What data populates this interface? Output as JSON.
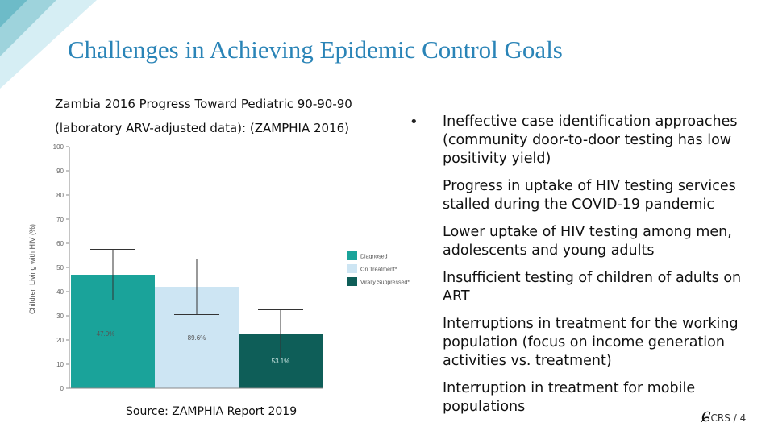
{
  "slide": {
    "title": "Challenges in Achieving Epidemic Control Goals",
    "chart_heading_line1": "Zambia 2016 Progress Toward Pediatric 90-90-90",
    "chart_heading_line2": "(laboratory ARV-adjusted data): (ZAMPHIA 2016)",
    "source": "Source: ZAMPHIA Report 2019",
    "bullet_symbol": "•",
    "bullets": [
      "Ineffective case identification approaches (community door-to-door testing has low positivity yield)",
      "Progress in uptake of HIV testing services stalled during the COVID-19 pandemic",
      "Lower uptake of HIV testing among men, adolescents and young adults",
      "Insufficient testing of children of adults on ART",
      "Interruptions in treatment for the working population (focus on income generation activities vs. treatment)",
      "Interruption in treatment for mobile populations"
    ],
    "logo_text": "CRS",
    "page_number": "/ 4"
  },
  "chart_data": {
    "type": "bar",
    "title": "",
    "xlabel": "",
    "ylabel": "Children Living with HIV (%)",
    "ylim": [
      0,
      100
    ],
    "yticks": [
      "0",
      "10",
      "20",
      "30",
      "40",
      "50",
      "60",
      "70",
      "80",
      "90",
      "100"
    ],
    "categories": [
      "Diagnosed",
      "On Treatment*",
      "Virally Suppressed*"
    ],
    "values": [
      47.0,
      42.0,
      22.5
    ],
    "data_labels": [
      "47.0%",
      "89.6%",
      "53.1%"
    ],
    "error_bars": [
      [
        36.5,
        57.5
      ],
      [
        30.5,
        53.5
      ],
      [
        12.5,
        32.5
      ]
    ],
    "colors": [
      "#1aa39a",
      "#cde5f3",
      "#0e5e58"
    ],
    "legend": [
      "Diagnosed",
      "On Treatment*",
      "Virally Suppressed*"
    ],
    "legend_position": "right"
  }
}
